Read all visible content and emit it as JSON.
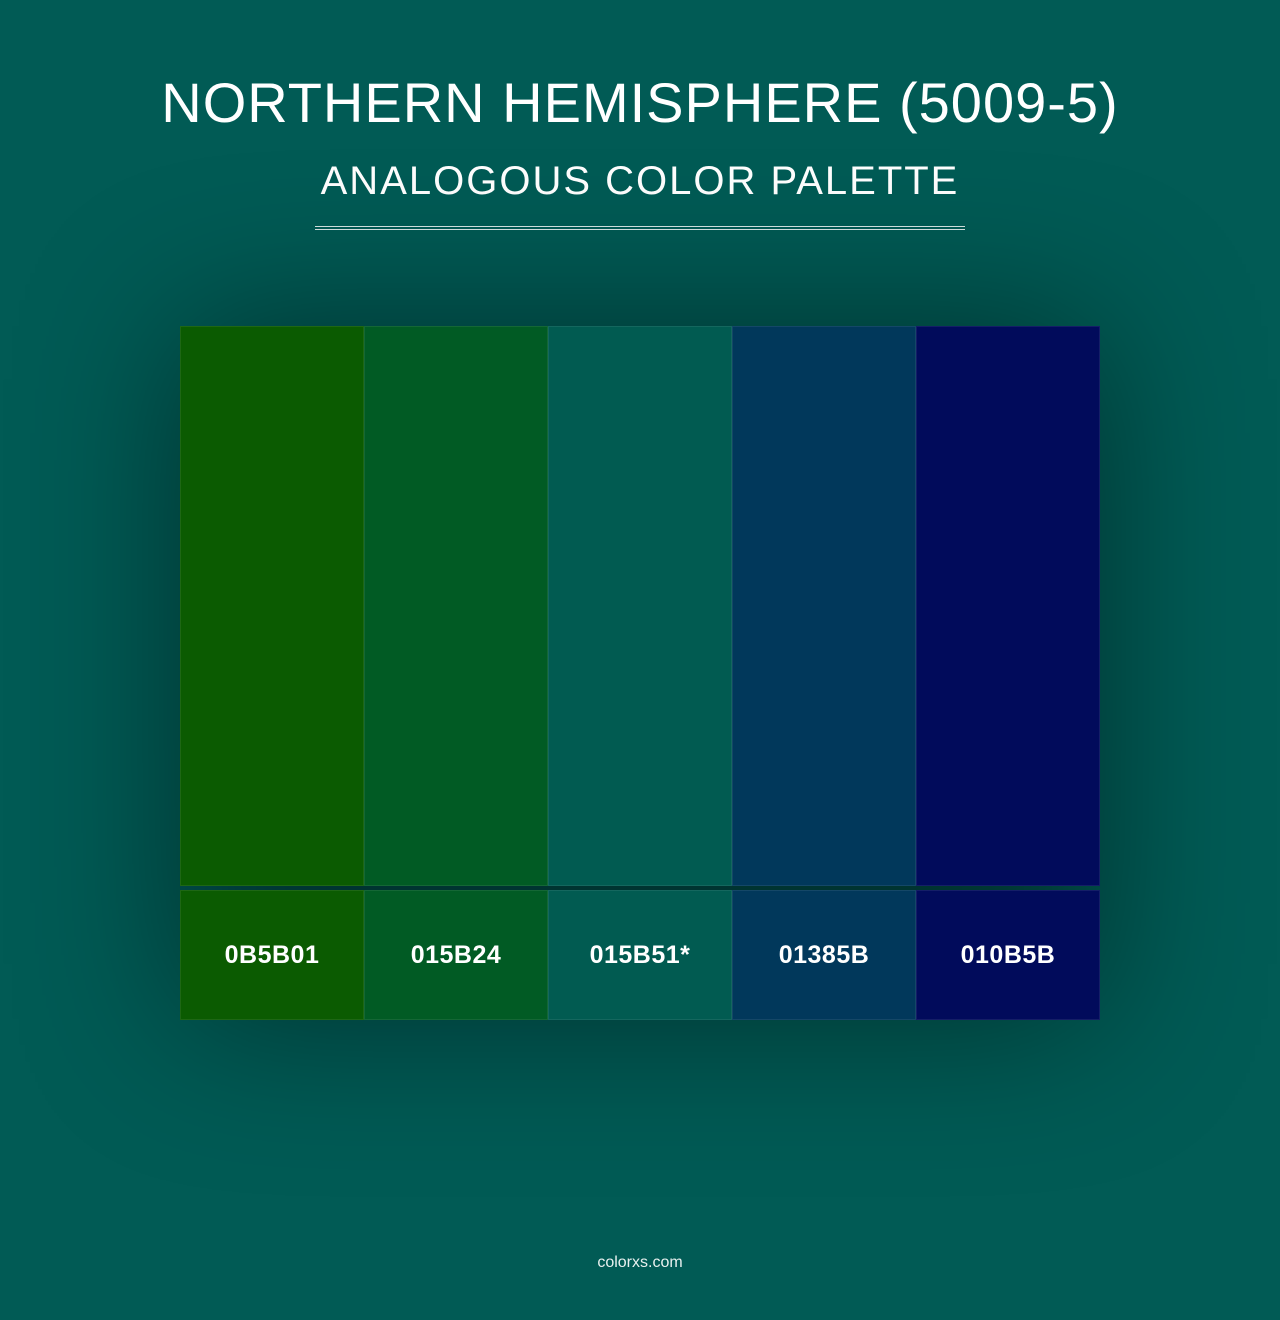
{
  "header": {
    "title": "NORTHERN HEMISPHERE (5009-5)",
    "subtitle": "ANALOGOUS COLOR PALETTE",
    "title_fontsize": 56,
    "subtitle_fontsize": 40,
    "text_color": "#ffffff",
    "divider_color": "#d8e6e5",
    "divider_width": 650
  },
  "background_color": "#015b55",
  "palette": {
    "type": "color-swatches",
    "swatch_width": 184,
    "swatch_height": 560,
    "label_height": 130,
    "label_fontsize": 25,
    "label_fontweight": 700,
    "label_text_color": "#ffffff",
    "border_color": "rgba(255,255,255,0.08)",
    "shadow": "0 0 80px rgba(0,0,0,0.45)",
    "colors": [
      {
        "hex": "#0b5b01",
        "label": "0B5B01"
      },
      {
        "hex": "#015b24",
        "label": "015B24"
      },
      {
        "hex": "#015b51",
        "label": "015B51*"
      },
      {
        "hex": "#01385b",
        "label": "01385B"
      },
      {
        "hex": "#010b5b",
        "label": "010B5B"
      }
    ]
  },
  "footer": {
    "text": "colorxs.com",
    "fontsize": 16,
    "color": "#e8f0ef"
  }
}
